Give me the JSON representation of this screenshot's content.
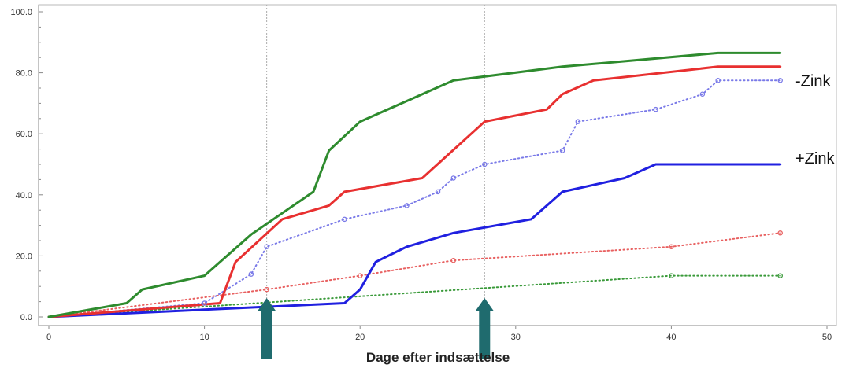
{
  "chart_data": {
    "type": "line",
    "xlabel": "Dage efter indsættelse",
    "ylabel": "",
    "xlim": [
      0,
      50
    ],
    "ylim": [
      0,
      100
    ],
    "xticks": [
      0,
      10,
      20,
      30,
      40,
      50
    ],
    "yticks": [
      0,
      20,
      40,
      60,
      80,
      100
    ],
    "xtick_labels": [
      "0",
      "10",
      "20",
      "30",
      "40",
      "50"
    ],
    "ytick_labels": [
      "0.0",
      "20.0",
      "40.0",
      "60.0",
      "80.0",
      "100.0"
    ],
    "minor_yticks_step": 5,
    "grid": false,
    "reference_lines_x": [
      14,
      28
    ],
    "arrows_at_x": [
      14,
      28
    ],
    "arrow_color": "#1f6b6e",
    "annotations": [
      {
        "text": "-Zink",
        "y": 80
      },
      {
        "text": "+Zink",
        "y": 52
      }
    ],
    "series": [
      {
        "color": "#2e8b2e",
        "style": "solid",
        "x": [
          0,
          5,
          6,
          10,
          13,
          17,
          18,
          20,
          26,
          33,
          43,
          47
        ],
        "y": [
          0,
          4.5,
          9,
          13.5,
          27,
          41,
          54.5,
          64,
          77.5,
          82,
          86.5,
          86.5
        ]
      },
      {
        "color": "#e83030",
        "style": "solid",
        "x": [
          0,
          11,
          12,
          15,
          18,
          19,
          24,
          28,
          32,
          33,
          35,
          43,
          47
        ],
        "y": [
          0,
          4.5,
          18,
          32,
          36.5,
          41,
          45.5,
          64,
          68,
          73,
          77.5,
          82,
          82
        ]
      },
      {
        "color": "#7a7ae8",
        "style": "dotted",
        "x": [
          0,
          10,
          13,
          14,
          19,
          23,
          25,
          26,
          28,
          33,
          34,
          39,
          42,
          43,
          47
        ],
        "y": [
          0,
          4.5,
          14,
          23,
          32,
          36.5,
          41,
          45.5,
          50,
          54.5,
          64,
          68,
          73,
          77.5,
          77.5
        ]
      },
      {
        "color": "#2020e0",
        "style": "solid",
        "x": [
          0,
          19,
          20,
          21,
          23,
          26,
          31,
          33,
          37,
          39,
          47
        ],
        "y": [
          0,
          4.5,
          9,
          18,
          23,
          27.5,
          32,
          41,
          45.5,
          50,
          50
        ]
      },
      {
        "color": "#e86060",
        "style": "dotted",
        "x": [
          0,
          14,
          20,
          26,
          40,
          47
        ],
        "y": [
          0,
          9,
          13.5,
          18.5,
          23,
          27.5
        ]
      },
      {
        "color": "#3a9a3a",
        "style": "dotted",
        "x": [
          0,
          40,
          47
        ],
        "y": [
          0,
          13.5,
          13.5
        ]
      }
    ],
    "markers": [
      {
        "series": 2,
        "x": [
          10,
          13,
          14,
          19,
          23,
          25,
          26,
          28,
          33,
          34,
          39,
          42,
          43,
          47
        ],
        "y": [
          4.5,
          14,
          23,
          32,
          36.5,
          41,
          45.5,
          50,
          54.5,
          64,
          68,
          73,
          77.5,
          77.5
        ]
      },
      {
        "series": 4,
        "x": [
          14,
          20,
          26,
          40,
          47
        ],
        "y": [
          9,
          13.5,
          18.5,
          23,
          27.5
        ]
      },
      {
        "series": 5,
        "x": [
          40,
          47
        ],
        "y": [
          13.5,
          13.5
        ]
      }
    ]
  }
}
